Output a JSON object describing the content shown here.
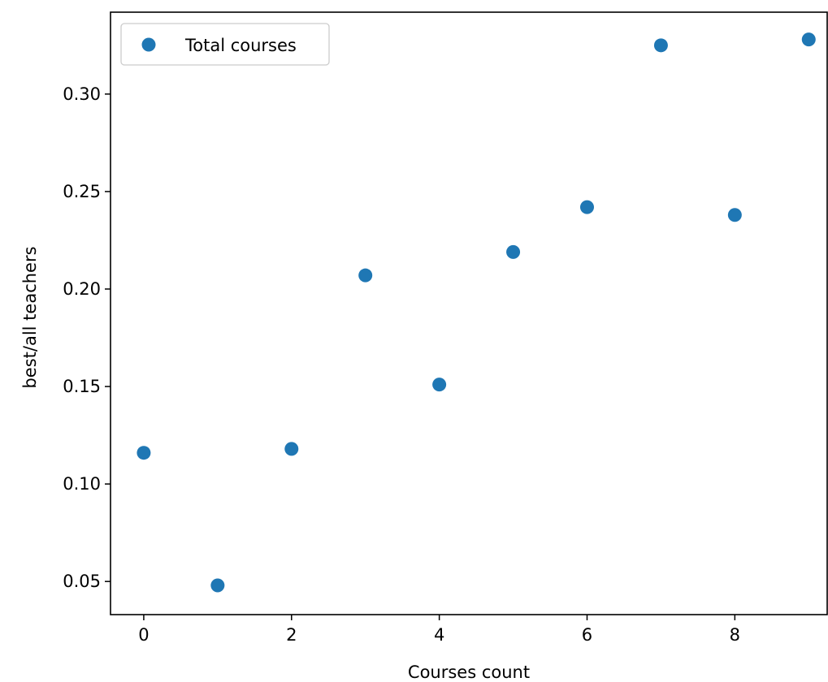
{
  "chart_data": {
    "type": "scatter",
    "title": "",
    "xlabel": "Courses count",
    "ylabel": "best/all teachers",
    "xlim": [
      -0.45,
      9.25
    ],
    "ylim": [
      0.033,
      0.342
    ],
    "xticks": [
      0,
      2,
      4,
      6,
      8
    ],
    "xtick_labels": [
      "0",
      "2",
      "4",
      "6",
      "8"
    ],
    "yticks": [
      0.05,
      0.1,
      0.15,
      0.2,
      0.25,
      0.3
    ],
    "ytick_labels": [
      "0.05",
      "0.10",
      "0.15",
      "0.20",
      "0.25",
      "0.30"
    ],
    "grid": false,
    "legend_position": "upper-left",
    "series": [
      {
        "name": "Total courses",
        "color": "#1f77b4",
        "marker": "circle",
        "x": [
          0,
          1,
          2,
          3,
          4,
          5,
          6,
          7,
          8,
          9
        ],
        "y": [
          0.116,
          0.048,
          0.118,
          0.207,
          0.151,
          0.219,
          0.242,
          0.325,
          0.238,
          0.328
        ]
      }
    ]
  }
}
